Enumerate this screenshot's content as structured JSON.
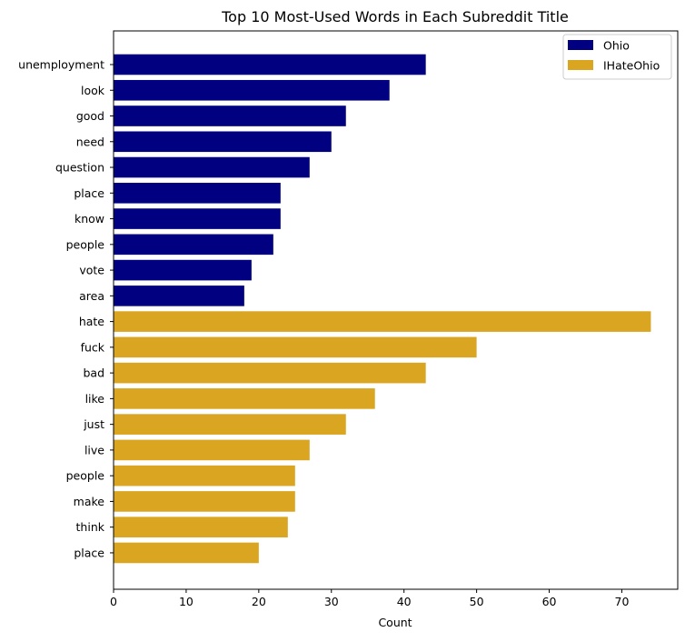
{
  "chart_data": {
    "type": "bar",
    "orientation": "horizontal",
    "title": "Top 10 Most-Used Words in Each Subreddit Title",
    "xlabel": "Count",
    "ylabel": "",
    "xlim": [
      0,
      77.7
    ],
    "xticks": [
      0,
      10,
      20,
      30,
      40,
      50,
      60,
      70
    ],
    "grid": false,
    "legend_position": "top-right",
    "series": [
      {
        "name": "Ohio",
        "color": "#000080",
        "categories": [
          "unemployment",
          "look",
          "good",
          "need",
          "question",
          "place",
          "know",
          "people",
          "vote",
          "area"
        ],
        "values": [
          43,
          38,
          32,
          30,
          27,
          23,
          23,
          22,
          19,
          18
        ]
      },
      {
        "name": "IHateOhio",
        "color": "#DAA520",
        "categories": [
          "hate",
          "fuck",
          "bad",
          "like",
          "just",
          "live",
          "people",
          "make",
          "think",
          "place"
        ],
        "values": [
          74,
          50,
          43,
          36,
          32,
          27,
          25,
          25,
          24,
          20
        ]
      }
    ]
  }
}
